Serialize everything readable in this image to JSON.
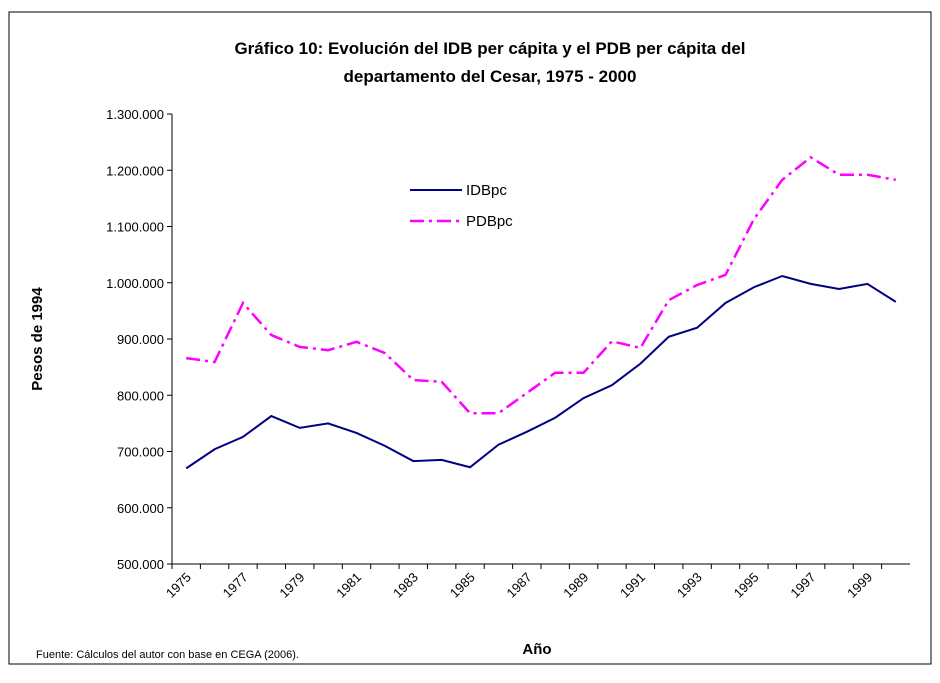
{
  "chart_data": {
    "type": "line",
    "title": "Gráfico 10: Evolución del IDB per cápita y el PDB per cápita del",
    "title_line2": "departamento del Cesar, 1975 - 2000",
    "x_label": "Año",
    "y_label": "Pesos de 1994",
    "source": "Fuente: Cálculos del autor con base en CEGA (2006).",
    "categories": [
      "1975",
      null,
      "1977",
      null,
      "1979",
      null,
      "1981",
      null,
      "1983",
      null,
      "1985",
      null,
      "1987",
      null,
      "1989",
      null,
      "1991",
      null,
      "1993",
      null,
      "1995",
      null,
      "1997",
      null,
      "1999",
      null
    ],
    "series": [
      {
        "name": "IDBpc",
        "color": "#000080",
        "dash": "solid",
        "values": [
          670000,
          704000,
          726000,
          763000,
          742000,
          750000,
          733000,
          710000,
          683000,
          685000,
          672000,
          712000,
          735000,
          760000,
          795000,
          818000,
          856000,
          904000,
          920000,
          964000,
          992000,
          1012000,
          998000,
          989000,
          998000,
          966000
        ]
      },
      {
        "name": "PDBpc",
        "color": "#ff00ff",
        "dash": "dash-dot",
        "values": [
          866000,
          859000,
          964000,
          907000,
          886000,
          880000,
          895000,
          875000,
          827000,
          824000,
          768000,
          768000,
          804000,
          840000,
          840000,
          896000,
          884000,
          969000,
          996000,
          1014000,
          1113000,
          1183000,
          1223000,
          1192000,
          1192000,
          1183000
        ]
      }
    ],
    "ylim": [
      500000,
      1300000
    ],
    "yticks": [
      {
        "value": 500000,
        "label": "500.000"
      },
      {
        "value": 600000,
        "label": "600.000"
      },
      {
        "value": 700000,
        "label": "700.000"
      },
      {
        "value": 800000,
        "label": "800.000"
      },
      {
        "value": 900000,
        "label": "900.000"
      },
      {
        "value": 1000000,
        "label": "1.000.000"
      },
      {
        "value": 1100000,
        "label": "1.100.000"
      },
      {
        "value": 1200000,
        "label": "1.200.000"
      },
      {
        "value": 1300000,
        "label": "1.300.000"
      }
    ],
    "grid": false,
    "legend": "inside-top"
  }
}
